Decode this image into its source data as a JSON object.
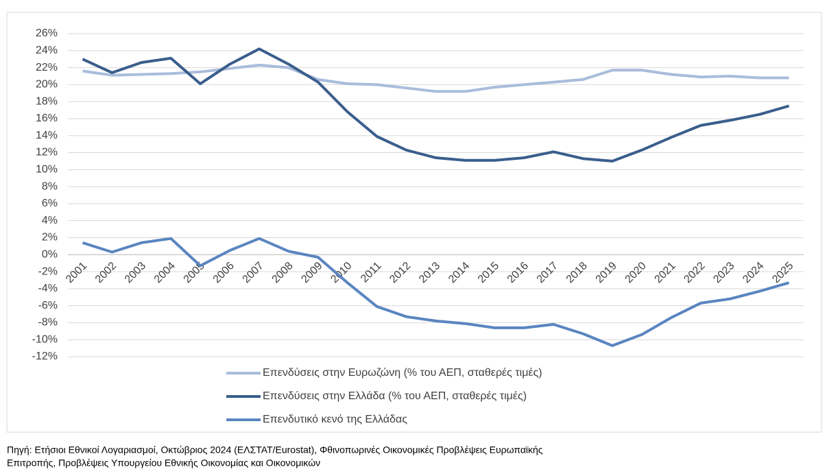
{
  "chart_data": {
    "type": "line",
    "categories": [
      "2001",
      "2002",
      "2003",
      "2004",
      "2005",
      "2006",
      "2007",
      "2008",
      "2009",
      "2010",
      "2011",
      "2012",
      "2013",
      "2014",
      "2015",
      "2016",
      "2017",
      "2018",
      "2019",
      "2020",
      "2021",
      "2022",
      "2023",
      "2024",
      "2025"
    ],
    "series": [
      {
        "name": "Επενδύσεις στην Ευρωζώνη (% του ΑΕΠ, σταθερές τιμές)",
        "color": "#a9bcdb",
        "values": [
          21.6,
          21.1,
          21.2,
          21.3,
          21.5,
          21.9,
          22.3,
          22.0,
          20.6,
          20.1,
          20.0,
          19.6,
          19.2,
          19.2,
          19.7,
          20.0,
          20.3,
          20.6,
          21.7,
          21.7,
          21.2,
          20.9,
          21.0,
          20.8,
          20.8
        ]
      },
      {
        "name": "Επενδύσεις στην Ελλάδα (% του ΑΕΠ, σταθερές τιμές)",
        "color": "#3a5e8c",
        "values": [
          23.0,
          21.4,
          22.6,
          23.1,
          20.1,
          22.4,
          24.2,
          22.4,
          20.3,
          16.8,
          13.9,
          12.3,
          11.4,
          11.1,
          11.1,
          11.4,
          12.1,
          11.3,
          11.0,
          12.3,
          13.8,
          15.2,
          15.8,
          16.5,
          17.5
        ]
      },
      {
        "name": "Επενδυτικό κενό της Ελλάδας",
        "color": "#5a85c0",
        "values": [
          1.4,
          0.3,
          1.4,
          1.9,
          -1.3,
          0.5,
          1.9,
          0.4,
          -0.3,
          -3.3,
          -6.1,
          -7.3,
          -7.8,
          -8.1,
          -8.6,
          -8.6,
          -8.2,
          -9.3,
          -10.7,
          -9.4,
          -7.4,
          -5.7,
          -5.2,
          -4.3,
          -3.3
        ]
      }
    ],
    "ylim": [
      -12,
      26
    ],
    "yticks": [
      {
        "value": -12,
        "label": "-12%"
      },
      {
        "value": -10,
        "label": "-10%"
      },
      {
        "value": -8,
        "label": "-8%"
      },
      {
        "value": -6,
        "label": "-6%"
      },
      {
        "value": -4,
        "label": "-4%"
      },
      {
        "value": -2,
        "label": "-2%"
      },
      {
        "value": 0,
        "label": "0%"
      },
      {
        "value": 2,
        "label": "2%"
      },
      {
        "value": 4,
        "label": "4%"
      },
      {
        "value": 6,
        "label": "6%"
      },
      {
        "value": 8,
        "label": "8%"
      },
      {
        "value": 10,
        "label": "10%"
      },
      {
        "value": 12,
        "label": "12%"
      },
      {
        "value": 14,
        "label": "14%"
      },
      {
        "value": 16,
        "label": "16%"
      },
      {
        "value": 18,
        "label": "18%"
      },
      {
        "value": 20,
        "label": "20%"
      },
      {
        "value": 22,
        "label": "22%"
      },
      {
        "value": 24,
        "label": "24%"
      },
      {
        "value": 26,
        "label": "26%"
      }
    ],
    "grid": true,
    "legend": "bottom",
    "source": [
      "Πηγή: Ετήσιοι Εθνικοί Λογαριασμοί, Οκτώβριος 2024 (ΕΛΣΤΑΤ/Eurostat), Φθινοπωρινές Οικονομικές Προβλέψεις Ευρωπαϊκής",
      "Επιτροπής, Προβλέψεις Υπουργείου Εθνικής Οικονομίας και Οικονομικών"
    ]
  }
}
